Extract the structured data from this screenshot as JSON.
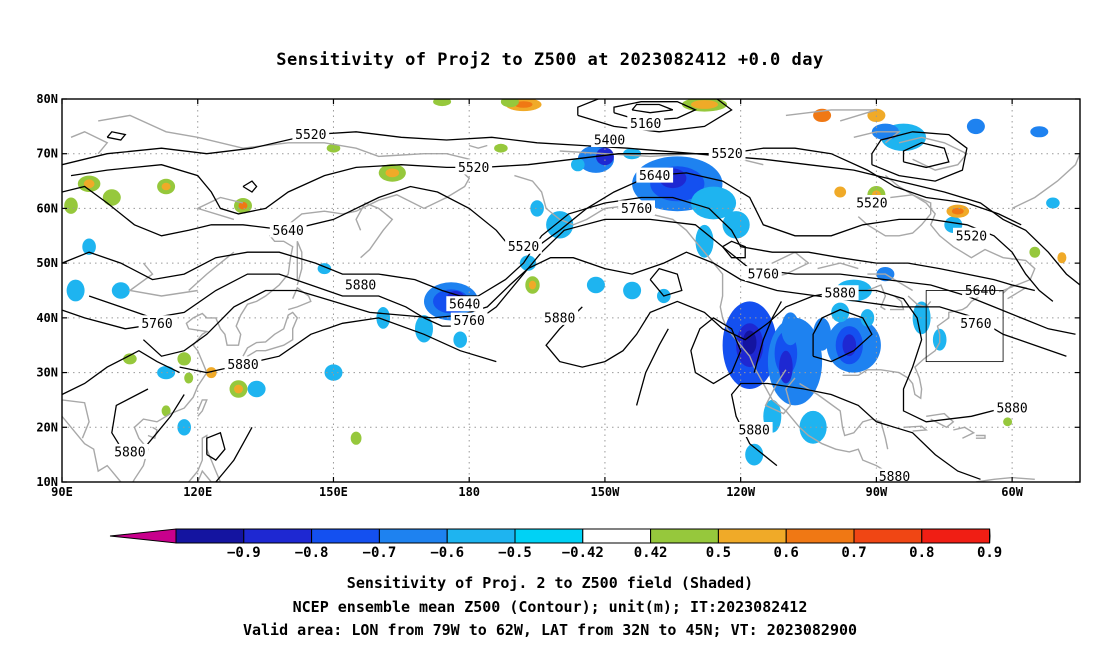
{
  "title": "Sensitivity of Proj2 to Z500 at 2023082412 +0.0 day",
  "lon_labels": [
    "90E",
    "120E",
    "150E",
    "180",
    "150W",
    "120W",
    "90W",
    "60W"
  ],
  "lat_labels": [
    "10N",
    "20N",
    "30N",
    "40N",
    "50N",
    "60N",
    "70N",
    "80N"
  ],
  "colorbar": {
    "labels": [
      "−0.9",
      "−0.8",
      "−0.7",
      "−0.6",
      "−0.5",
      "−0.42",
      "0.42",
      "0.5",
      "0.6",
      "0.7",
      "0.8",
      "0.9"
    ],
    "colors": [
      "#c8008c",
      "#1414a0",
      "#1e28d2",
      "#1450f0",
      "#1e82f0",
      "#1eb4f0",
      "#00d2f5",
      "#ffffff",
      "#96c83c",
      "#f0aa28",
      "#f07814",
      "#f04614",
      "#f01e14",
      "#f5a0c8"
    ]
  },
  "contour_labels": [
    {
      "text": "5520",
      "lon": 145,
      "lat": 73.5
    },
    {
      "text": "5520",
      "lon": 181,
      "lat": 67.5
    },
    {
      "text": "5400",
      "lon": 211,
      "lat": 72.5
    },
    {
      "text": "5160",
      "lon": 219,
      "lat": 75.5
    },
    {
      "text": "5520",
      "lon": 237,
      "lat": 70
    },
    {
      "text": "5640",
      "lon": 221,
      "lat": 66
    },
    {
      "text": "5760",
      "lon": 217,
      "lat": 60
    },
    {
      "text": "5520",
      "lon": 269,
      "lat": 61
    },
    {
      "text": "5520",
      "lon": 291,
      "lat": 55
    },
    {
      "text": "5640",
      "lon": 140,
      "lat": 56
    },
    {
      "text": "5520",
      "lon": 192,
      "lat": 53
    },
    {
      "text": "5880",
      "lon": 156,
      "lat": 46
    },
    {
      "text": "5640",
      "lon": 179,
      "lat": 42.5
    },
    {
      "text": "5760",
      "lon": 180,
      "lat": 39.5
    },
    {
      "text": "5880",
      "lon": 200,
      "lat": 40
    },
    {
      "text": "5760",
      "lon": 245,
      "lat": 48
    },
    {
      "text": "5880",
      "lon": 262,
      "lat": 44.5
    },
    {
      "text": "5640",
      "lon": 293,
      "lat": 45
    },
    {
      "text": "5760",
      "lon": 292,
      "lat": 39
    },
    {
      "text": "5760",
      "lon": 111,
      "lat": 39
    },
    {
      "text": "5880",
      "lon": 130,
      "lat": 31.5
    },
    {
      "text": "5880",
      "lon": 300,
      "lat": 23.5
    },
    {
      "text": "5880",
      "lon": 243,
      "lat": 19.5
    },
    {
      "text": "5880",
      "lon": 105,
      "lat": 15.5
    },
    {
      "text": "5880",
      "lon": 274,
      "lat": 11
    }
  ],
  "valid_box": {
    "lon_min": 281,
    "lon_max": 298,
    "lat_min": 32,
    "lat_max": 45
  },
  "footer": {
    "line1": "Sensitivity of Proj. 2 to Z500 field (Shaded)",
    "line2": "NCEP ensemble mean Z500 (Contour); unit(m); IT:2023082412",
    "line3": "Valid area: LON from 79W to 62W, LAT from 32N to 45N; VT: 2023082900"
  }
}
